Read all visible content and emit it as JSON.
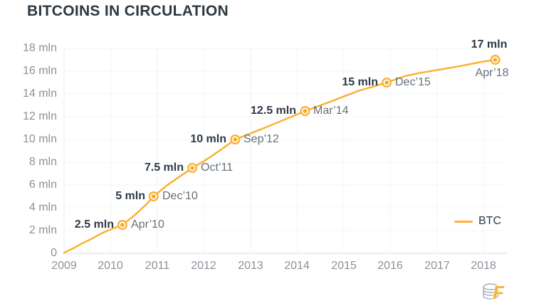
{
  "chart_data": {
    "type": "line",
    "title": "BITCOINS IN CIRCULATION",
    "xlabel": "",
    "ylabel": "",
    "xlim": [
      2009,
      2018.5
    ],
    "ylim": [
      0,
      18
    ],
    "grid": true,
    "legend_position": "right-middle",
    "x_ticks": [
      2009,
      2010,
      2011,
      2012,
      2013,
      2014,
      2015,
      2016,
      2017,
      2018
    ],
    "y_ticks": [
      {
        "value": 0,
        "label": "0"
      },
      {
        "value": 2,
        "label": "2 mln"
      },
      {
        "value": 4,
        "label": "4 mln"
      },
      {
        "value": 6,
        "label": "6 mln"
      },
      {
        "value": 8,
        "label": "8 mln"
      },
      {
        "value": 10,
        "label": "10 mln"
      },
      {
        "value": 12,
        "label": "12 mln"
      },
      {
        "value": 14,
        "label": "14 mln"
      },
      {
        "value": 16,
        "label": "16 mln"
      },
      {
        "value": 18,
        "label": "18 mln"
      }
    ],
    "series": [
      {
        "name": "BTC",
        "color": "#f9b233",
        "points": [
          [
            2009.0,
            0.05
          ],
          [
            2009.2,
            0.45
          ],
          [
            2009.4,
            0.9
          ],
          [
            2009.6,
            1.3
          ],
          [
            2009.8,
            1.75
          ],
          [
            2010.0,
            2.1
          ],
          [
            2010.25,
            2.5
          ],
          [
            2010.5,
            3.3
          ],
          [
            2010.75,
            4.25
          ],
          [
            2010.92,
            5.0
          ],
          [
            2011.2,
            5.95
          ],
          [
            2011.5,
            6.8
          ],
          [
            2011.75,
            7.5
          ],
          [
            2012.0,
            8.1
          ],
          [
            2012.33,
            9.0
          ],
          [
            2012.67,
            10.0
          ],
          [
            2012.95,
            10.45
          ],
          [
            2013.5,
            11.35
          ],
          [
            2014.17,
            12.5
          ],
          [
            2014.7,
            13.3
          ],
          [
            2015.3,
            14.25
          ],
          [
            2015.92,
            15.0
          ],
          [
            2016.3,
            15.55
          ],
          [
            2016.58,
            15.8
          ],
          [
            2017.0,
            16.1
          ],
          [
            2017.5,
            16.45
          ],
          [
            2018.0,
            16.85
          ],
          [
            2018.25,
            17.0
          ]
        ]
      }
    ],
    "annotations": [
      {
        "x": 2010.25,
        "y": 2.5,
        "value_label": "2.5 mln",
        "date_label": "Apr’10",
        "layout": "side"
      },
      {
        "x": 2010.92,
        "y": 5,
        "value_label": "5 mln",
        "date_label": "Dec’10",
        "layout": "side"
      },
      {
        "x": 2011.75,
        "y": 7.5,
        "value_label": "7.5 mln",
        "date_label": "Oct’11",
        "layout": "side"
      },
      {
        "x": 2012.67,
        "y": 10,
        "value_label": "10 mln",
        "date_label": "Sep’12",
        "layout": "side"
      },
      {
        "x": 2014.17,
        "y": 12.5,
        "value_label": "12.5 mln",
        "date_label": "Mar’14",
        "layout": "side"
      },
      {
        "x": 2015.92,
        "y": 15,
        "value_label": "15 mln",
        "date_label": "Dec’15",
        "layout": "side"
      },
      {
        "x": 2018.25,
        "y": 17,
        "value_label": "17 mln",
        "date_label": "Apr’18",
        "layout": "stacked"
      }
    ]
  },
  "colors": {
    "line": "#f9b233",
    "marker_center": "#f5a623",
    "title_text": "#2c3842",
    "tick_text": "#8b9299",
    "annotation_value_text": "#2e3a46",
    "annotation_date_text": "#667079",
    "grid": "#f3f4f5",
    "axis_bottom": "#d9dde0",
    "axis_left": "#e9ebee"
  }
}
